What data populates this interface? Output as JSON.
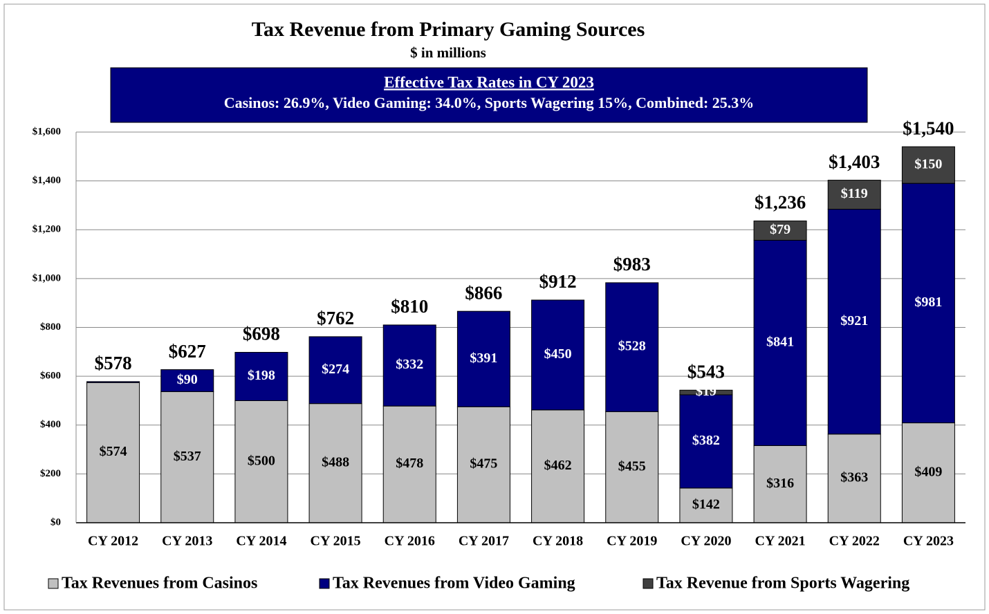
{
  "chart_data": {
    "type": "stacked_bar",
    "title": "Tax Revenue from Primary Gaming Sources",
    "subtitle": "$ in millions",
    "annotation": {
      "title": "Effective Tax Rates in CY 2023",
      "text": "Casinos: 26.9%, Video Gaming: 34.0%, Sports Wagering 15%,  Combined: 25.3%"
    },
    "categories": [
      "CY 2012",
      "CY 2013",
      "CY 2014",
      "CY 2015",
      "CY 2016",
      "CY 2017",
      "CY 2018",
      "CY 2019",
      "CY 2020",
      "CY 2021",
      "CY 2022",
      "CY 2023"
    ],
    "series": [
      {
        "name": "Tax Revenues from Casinos",
        "color": "#c0c0c0",
        "label_color": "#000000",
        "values": [
          574,
          537,
          500,
          488,
          478,
          475,
          462,
          455,
          142,
          316,
          363,
          409
        ],
        "value_labels": [
          "$574",
          "$537",
          "$500",
          "$488",
          "$478",
          "$475",
          "$462",
          "$455",
          "$142",
          "$316",
          "$363",
          "$409"
        ]
      },
      {
        "name": "Tax Revenues from Video Gaming",
        "color": "#000080",
        "label_color": "#ffffff",
        "values": [
          4,
          90,
          198,
          274,
          332,
          391,
          450,
          528,
          382,
          841,
          921,
          981
        ],
        "value_labels": [
          null,
          "$90",
          "$198",
          "$274",
          "$332",
          "$391",
          "$450",
          "$528",
          "$382",
          "$841",
          "$921",
          "$981"
        ]
      },
      {
        "name": "Tax Revenue from Sports Wagering",
        "color": "#404040",
        "label_color": "#ffffff",
        "values": [
          null,
          null,
          null,
          null,
          null,
          null,
          null,
          null,
          19,
          79,
          119,
          150
        ],
        "value_labels": [
          null,
          null,
          null,
          null,
          null,
          null,
          null,
          null,
          "$19",
          "$79",
          "$119",
          "$150"
        ]
      }
    ],
    "totals": [
      578,
      627,
      698,
      762,
      810,
      866,
      912,
      983,
      543,
      1236,
      1403,
      1540
    ],
    "total_labels": [
      "$578",
      "$627",
      "$698",
      "$762",
      "$810",
      "$866",
      "$912",
      "$983",
      "$543",
      "$1,236",
      "$1,403",
      "$1,540"
    ],
    "ylim": [
      0,
      1600
    ],
    "yticks": [
      {
        "value": 0,
        "label": "$0"
      },
      {
        "value": 200,
        "label": "$200"
      },
      {
        "value": 400,
        "label": "$400"
      },
      {
        "value": 600,
        "label": "$600"
      },
      {
        "value": 800,
        "label": "$800"
      },
      {
        "value": 1000,
        "label": "$1,000"
      },
      {
        "value": 1200,
        "label": "$1,200"
      },
      {
        "value": 1400,
        "label": "$1,400"
      },
      {
        "value": 1600,
        "label": "$1,600"
      }
    ],
    "grid": true,
    "legend": "bottom"
  }
}
